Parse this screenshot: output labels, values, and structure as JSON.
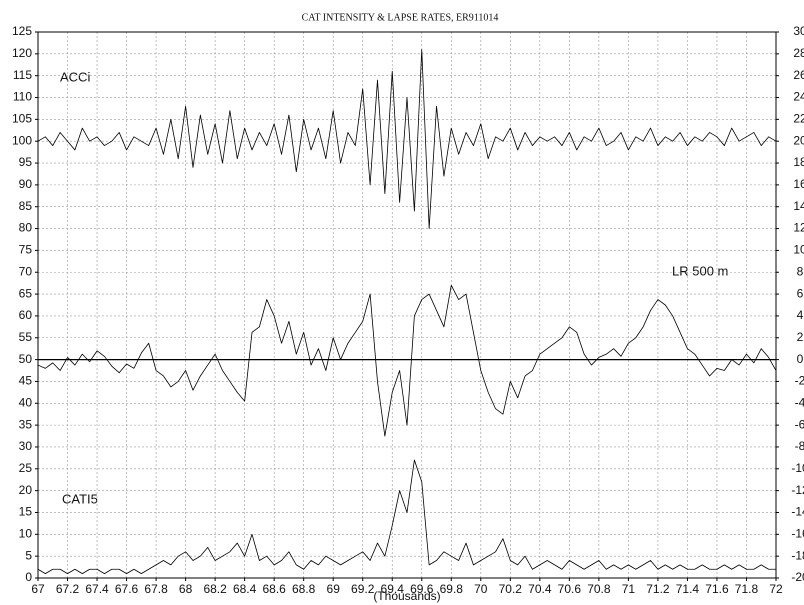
{
  "chart_data": {
    "type": "line",
    "title": "CAT INTENSITY & LAPSE RATES, ER911014",
    "xlabel": "(Thousands)",
    "annotations": [
      "ACCi",
      "LR 500 m",
      "CATI5"
    ],
    "grid": true,
    "reference_line": {
      "axis": "y2",
      "value": 0
    },
    "xlim": [
      67,
      72
    ],
    "xticks": [
      67,
      67.2,
      67.4,
      67.6,
      67.8,
      68,
      68.2,
      68.4,
      68.6,
      68.8,
      69,
      69.2,
      69.4,
      69.6,
      69.8,
      70,
      70.2,
      70.4,
      70.6,
      70.8,
      71,
      71.2,
      71.4,
      71.6,
      71.8,
      72
    ],
    "ylim": [
      0,
      125
    ],
    "yticks": [
      0,
      5,
      10,
      15,
      20,
      25,
      30,
      35,
      40,
      45,
      50,
      55,
      60,
      65,
      70,
      75,
      80,
      85,
      90,
      95,
      100,
      105,
      110,
      115,
      120,
      125
    ],
    "y2lim": [
      -20,
      30
    ],
    "y2ticks": [
      -20,
      -18,
      -16,
      -14,
      -12,
      -10,
      -8,
      -6,
      -4,
      -2,
      0,
      2,
      4,
      6,
      8,
      10,
      12,
      14,
      16,
      18,
      20,
      22,
      24,
      26,
      28,
      30
    ],
    "x": [
      67,
      67.05,
      67.1,
      67.15,
      67.2,
      67.25,
      67.3,
      67.35,
      67.4,
      67.45,
      67.5,
      67.55,
      67.6,
      67.65,
      67.7,
      67.75,
      67.8,
      67.85,
      67.9,
      67.95,
      68,
      68.05,
      68.1,
      68.15,
      68.2,
      68.25,
      68.3,
      68.35,
      68.4,
      68.45,
      68.5,
      68.55,
      68.6,
      68.65,
      68.7,
      68.75,
      68.8,
      68.85,
      68.9,
      68.95,
      69,
      69.05,
      69.1,
      69.15,
      69.2,
      69.25,
      69.3,
      69.35,
      69.4,
      69.45,
      69.5,
      69.55,
      69.6,
      69.65,
      69.7,
      69.75,
      69.8,
      69.85,
      69.9,
      69.95,
      70,
      70.05,
      70.1,
      70.15,
      70.2,
      70.25,
      70.3,
      70.35,
      70.4,
      70.45,
      70.5,
      70.55,
      70.6,
      70.65,
      70.7,
      70.75,
      70.8,
      70.85,
      70.9,
      70.95,
      71,
      71.05,
      71.1,
      71.15,
      71.2,
      71.25,
      71.3,
      71.35,
      71.4,
      71.45,
      71.5,
      71.55,
      71.6,
      71.65,
      71.7,
      71.75,
      71.8,
      71.85,
      71.9,
      71.95,
      72
    ],
    "series": [
      {
        "name": "ACCi",
        "color": "#000000",
        "values": [
          100,
          101,
          99,
          102,
          100,
          98,
          103,
          100,
          101,
          99,
          100,
          102,
          98,
          101,
          100,
          99,
          103,
          97,
          105,
          96,
          108,
          94,
          106,
          97,
          104,
          95,
          107,
          96,
          103,
          98,
          102,
          99,
          104,
          97,
          106,
          93,
          105,
          98,
          103,
          96,
          107,
          95,
          102,
          99,
          112,
          90,
          114,
          88,
          116,
          86,
          110,
          84,
          121,
          80,
          108,
          92,
          103,
          97,
          102,
          99,
          104,
          96,
          101,
          100,
          103,
          98,
          102,
          99,
          101,
          100,
          101,
          99,
          102,
          98,
          101,
          100,
          103,
          99,
          100,
          102,
          98,
          101,
          100,
          103,
          99,
          101,
          100,
          102,
          99,
          101,
          100,
          102,
          101,
          99,
          103,
          100,
          101,
          102,
          99,
          101,
          100
        ]
      },
      {
        "name": "LR 500 m",
        "color": "#000000",
        "axis": "y2",
        "values": [
          -0.5,
          -0.8,
          -0.3,
          -1.0,
          0.2,
          -0.5,
          0.5,
          -0.2,
          0.8,
          0.3,
          -0.6,
          -1.2,
          -0.4,
          -0.8,
          0.6,
          1.5,
          -1.0,
          -1.5,
          -2.5,
          -2.0,
          -1.0,
          -2.8,
          -1.5,
          -0.5,
          0.5,
          -1.0,
          -2.0,
          -3.0,
          -3.8,
          2.5,
          3.0,
          5.5,
          4.0,
          1.5,
          3.5,
          0.5,
          2.5,
          -0.5,
          1.0,
          -1.0,
          2.0,
          0.0,
          1.5,
          2.5,
          3.5,
          6.0,
          -2.0,
          -7.0,
          -3.0,
          -1.0,
          -6.0,
          4.0,
          5.5,
          6.0,
          4.5,
          3.0,
          6.8,
          5.5,
          6.0,
          2.5,
          -1.0,
          -3.0,
          -4.5,
          -5.0,
          -2.0,
          -3.5,
          -1.5,
          -1.0,
          0.5,
          1.0,
          1.5,
          2.0,
          3.0,
          2.5,
          0.5,
          -0.5,
          0.2,
          0.5,
          1.0,
          0.3,
          1.5,
          2.0,
          3.0,
          4.5,
          5.5,
          5.0,
          4.0,
          2.5,
          1.0,
          0.5,
          -0.5,
          -1.5,
          -0.8,
          -1.0,
          0.0,
          -0.5,
          0.5,
          -0.3,
          1.0,
          0.2,
          -1.0
        ]
      },
      {
        "name": "CATI5",
        "color": "#000000",
        "values": [
          2,
          1,
          2,
          2,
          1,
          2,
          1,
          2,
          2,
          1,
          2,
          2,
          1,
          2,
          1,
          2,
          3,
          4,
          3,
          5,
          6,
          4,
          5,
          7,
          4,
          5,
          6,
          8,
          5,
          10,
          4,
          5,
          3,
          4,
          6,
          3,
          2,
          4,
          3,
          5,
          4,
          3,
          4,
          5,
          6,
          4,
          8,
          5,
          12,
          20,
          15,
          27,
          22,
          3,
          4,
          6,
          5,
          4,
          8,
          3,
          4,
          5,
          6,
          9,
          4,
          3,
          5,
          2,
          3,
          4,
          3,
          2,
          4,
          3,
          2,
          3,
          4,
          2,
          3,
          2,
          3,
          2,
          3,
          4,
          2,
          3,
          2,
          3,
          2,
          2,
          3,
          2,
          2,
          3,
          2,
          3,
          2,
          2,
          3,
          2,
          2
        ]
      }
    ]
  }
}
